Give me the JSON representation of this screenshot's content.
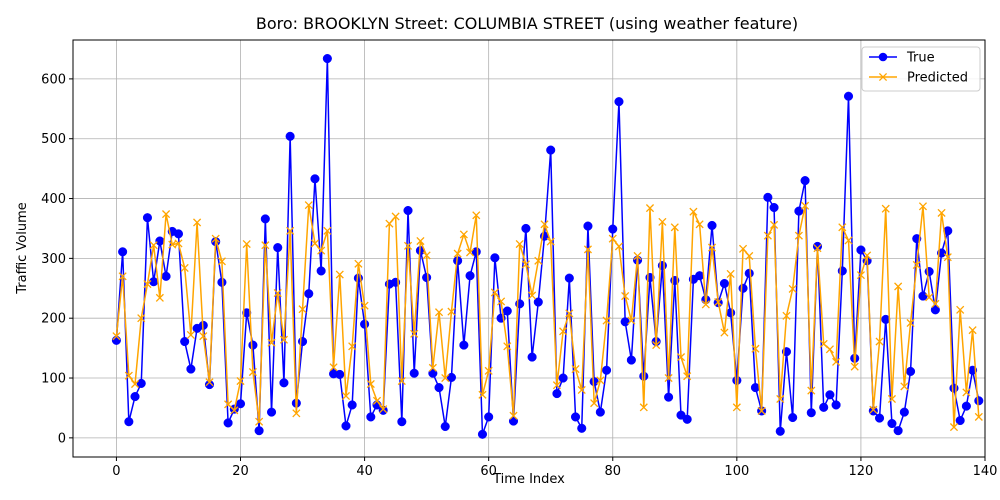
{
  "chart_data": {
    "type": "line",
    "title": "Boro: BROOKLYN Street: COLUMBIA STREET (using weather feature)",
    "xlabel": "Time Index",
    "ylabel": "Traffic Volume",
    "xlim": [
      -7,
      140
    ],
    "ylim": [
      -32,
      665
    ],
    "x_ticks": [
      0,
      20,
      40,
      60,
      80,
      100,
      120,
      140
    ],
    "y_ticks": [
      0,
      100,
      200,
      300,
      400,
      500,
      600
    ],
    "grid": true,
    "legend_position": "top-right",
    "series": [
      {
        "name": "True",
        "color": "#0000ff",
        "marker": "circle",
        "values": [
          163,
          311,
          27,
          69,
          91,
          368,
          261,
          329,
          270,
          345,
          341,
          161,
          115,
          183,
          188,
          89,
          328,
          260,
          25,
          48,
          57,
          209,
          155,
          12,
          366,
          43,
          318,
          92,
          504,
          58,
          161,
          241,
          433,
          279,
          634,
          107,
          106,
          20,
          55,
          267,
          190,
          35,
          55,
          46,
          257,
          260,
          27,
          380,
          108,
          313,
          268,
          108,
          84,
          19,
          101,
          296,
          155,
          271,
          311,
          6,
          35,
          301,
          200,
          212,
          28,
          224,
          350,
          135,
          227,
          337,
          481,
          74,
          100,
          267,
          35,
          16,
          354,
          94,
          43,
          113,
          349,
          562,
          194,
          130,
          297,
          103,
          268,
          161,
          288,
          68,
          263,
          38,
          31,
          265,
          271,
          231,
          355,
          226,
          258,
          209,
          96,
          250,
          275,
          84,
          45,
          402,
          385,
          11,
          144,
          34,
          379,
          430,
          42,
          320,
          51,
          72,
          55,
          279,
          571,
          133,
          314,
          296,
          45,
          33,
          198,
          24,
          12,
          43,
          111,
          333,
          237,
          278,
          214,
          309,
          346,
          83,
          29,
          53,
          113,
          62
        ]
      },
      {
        "name": "Predicted",
        "color": "#ffa500",
        "marker": "x",
        "values": [
          170,
          270,
          104,
          90,
          200,
          257,
          322,
          234,
          374,
          323,
          325,
          284,
          172,
          360,
          170,
          93,
          333,
          295,
          56,
          46,
          95,
          324,
          110,
          27,
          322,
          159,
          242,
          164,
          346,
          41,
          215,
          389,
          325,
          313,
          346,
          118,
          273,
          70,
          153,
          291,
          221,
          90,
          62,
          48,
          358,
          370,
          95,
          321,
          174,
          329,
          305,
          117,
          210,
          100,
          211,
          308,
          340,
          310,
          372,
          72,
          112,
          243,
          228,
          153,
          37,
          324,
          290,
          238,
          296,
          357,
          328,
          88,
          178,
          208,
          115,
          80,
          315,
          58,
          96,
          196,
          333,
          320,
          237,
          196,
          304,
          51,
          384,
          155,
          361,
          100,
          352,
          135,
          103,
          378,
          357,
          223,
          318,
          227,
          176,
          274,
          51,
          316,
          304,
          149,
          45,
          338,
          356,
          65,
          204,
          249,
          338,
          388,
          79,
          317,
          157,
          148,
          127,
          352,
          330,
          119,
          272,
          305,
          47,
          161,
          383,
          65,
          253,
          86,
          192,
          289,
          387,
          235,
          224,
          376,
          302,
          18,
          214,
          76,
          180,
          35
        ]
      }
    ]
  }
}
